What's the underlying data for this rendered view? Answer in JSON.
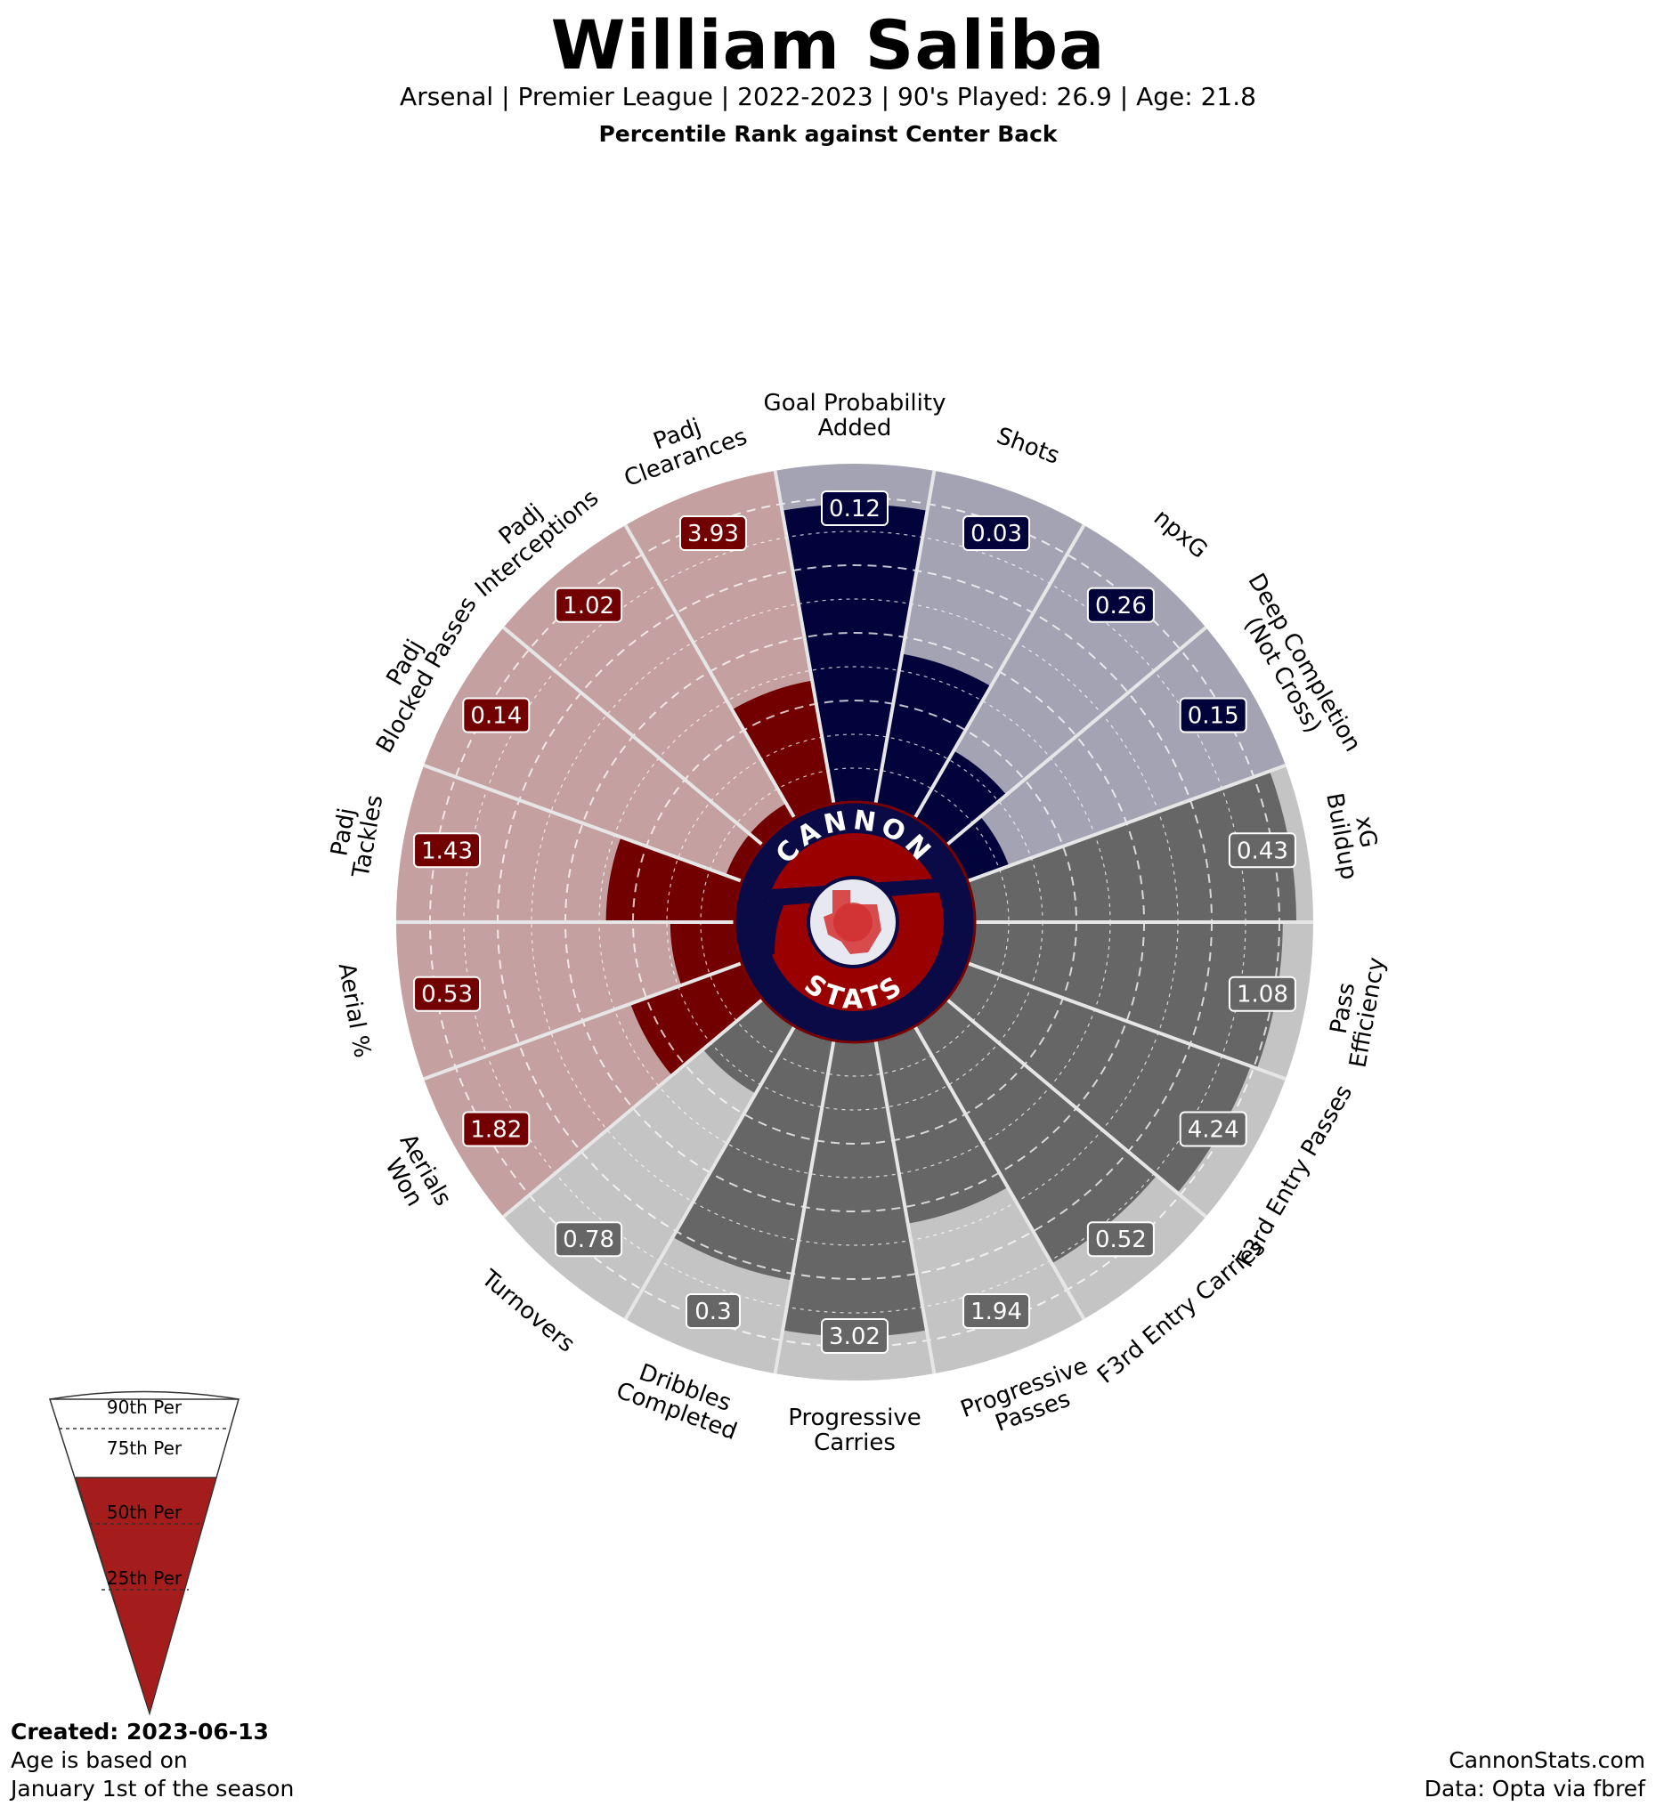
{
  "header": {
    "player_name": "William Saliba",
    "subtitle": "Arsenal  | Premier League | 2022-2023 | 90's Played: 26.9 | Age: 21.8",
    "percentile_note": "Percentile Rank against Center Back"
  },
  "footer": {
    "created": "Created: 2023-06-13",
    "age_note_line1": "Age is based on",
    "age_note_line2": "January 1st of the season",
    "site": "CannonStats.com",
    "source": "Data: Opta via fbref"
  },
  "logo": {
    "top_text": "CANNON",
    "bottom_text": "STATS"
  },
  "legend": {
    "labels": [
      "90th Per",
      "75th Per",
      "50th Per",
      "25th Per"
    ]
  },
  "colors": {
    "attacking": "#02033a",
    "attacking_bg": "#a3a3b3",
    "possession": "#666666",
    "possession_bg": "#c4c4c4",
    "defending": "#720000",
    "defending_bg": "#c4a0a0",
    "legend_fill": "#a41c1c",
    "logo_navy": "#0a0a46",
    "logo_red": "#9b0000"
  },
  "chart_data": {
    "type": "polar-bar",
    "title": "William Saliba",
    "scale": "percentile",
    "rlim": [
      0,
      100
    ],
    "rings": [
      10,
      20,
      30,
      40,
      50,
      60,
      70,
      80,
      90
    ],
    "categories": [
      {
        "label": "Goal Probability Added",
        "value_label": "0.12",
        "percentile": 88,
        "group": "attacking"
      },
      {
        "label": "Shots",
        "value_label": "0.03",
        "percentile": 45,
        "group": "attacking"
      },
      {
        "label": "npxG",
        "value_label": "0.26",
        "percentile": 23,
        "group": "attacking"
      },
      {
        "label": "Deep Completion (Not Cross)",
        "value_label": "0.15",
        "percentile": 13,
        "group": "attacking"
      },
      {
        "label": "xG Buildup",
        "value_label": "0.43",
        "percentile": 95,
        "group": "possession"
      },
      {
        "label": "Pass Efficiency",
        "value_label": "1.08",
        "percentile": 91,
        "group": "possession"
      },
      {
        "label": "F3rd Entry Passes",
        "value_label": "4.24",
        "percentile": 89,
        "group": "possession"
      },
      {
        "label": "F3rd Entry Carries",
        "value_label": "0.52",
        "percentile": 81,
        "group": "possession"
      },
      {
        "label": "Progressive Passes",
        "value_label": "1.94",
        "percentile": 55,
        "group": "possession"
      },
      {
        "label": "Progressive Carries",
        "value_label": "3.02",
        "percentile": 87,
        "group": "possession"
      },
      {
        "label": "Dribbles Completed",
        "value_label": "0.3",
        "percentile": 72,
        "group": "possession"
      },
      {
        "label": "Turnovers",
        "value_label": "0.78",
        "percentile": 23,
        "group": "possession"
      },
      {
        "label": "Aerials Won",
        "value_label": "1.82",
        "percentile": 35,
        "group": "defending"
      },
      {
        "label": "Aerial %",
        "value_label": "0.53",
        "percentile": 19,
        "group": "defending"
      },
      {
        "label": "Padj Tackles",
        "value_label": "1.43",
        "percentile": 38,
        "group": "defending"
      },
      {
        "label": "Padj Blocked Passes",
        "value_label": "0.14",
        "percentile": 5,
        "group": "defending"
      },
      {
        "label": "Padj Interceptions",
        "value_label": "1.02",
        "percentile": 5,
        "group": "defending"
      },
      {
        "label": "Padj Clearances",
        "value_label": "3.93",
        "percentile": 37,
        "group": "defending"
      }
    ]
  }
}
